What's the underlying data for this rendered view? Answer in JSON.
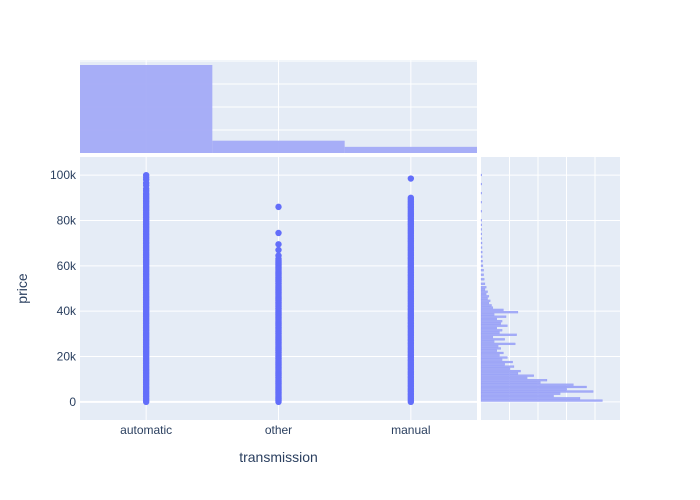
{
  "chart_data": {
    "type": "scatter",
    "subtype": "scatter with marginal histograms",
    "xlabel": "transmission",
    "ylabel": "price",
    "categories": [
      "automatic",
      "other",
      "manual"
    ],
    "y_ticks": [
      0,
      20000,
      40000,
      60000,
      80000,
      100000
    ],
    "y_tick_labels": [
      "0",
      "20k",
      "40k",
      "60k",
      "80k",
      "100k"
    ],
    "ylim": [
      -8000,
      108000
    ],
    "grid": true,
    "series": [
      {
        "name": "automatic",
        "dense_range": [
          0,
          92000
        ],
        "outliers": [
          93000,
          94000,
          95500,
          96500,
          98000,
          99000,
          100000
        ]
      },
      {
        "name": "other",
        "dense_range": [
          0,
          63000
        ],
        "outliers": [
          64500,
          67000,
          69500,
          74500,
          86000
        ]
      },
      {
        "name": "manual",
        "dense_range": [
          0,
          90000
        ],
        "outliers": [
          98500
        ]
      }
    ],
    "marginal_x_histogram": {
      "categories": [
        "automatic",
        "other",
        "manual"
      ],
      "relative_counts": [
        1.0,
        0.14,
        0.07
      ]
    },
    "marginal_y_histogram": {
      "bin_width": 1000,
      "bins": [
        {
          "y": 500,
          "rel": 0.92
        },
        {
          "y": 1500,
          "rel": 0.75
        },
        {
          "y": 2500,
          "rel": 0.55
        },
        {
          "y": 3500,
          "rel": 0.6
        },
        {
          "y": 4500,
          "rel": 0.85
        },
        {
          "y": 5500,
          "rel": 0.65
        },
        {
          "y": 6500,
          "rel": 0.8
        },
        {
          "y": 7500,
          "rel": 0.7
        },
        {
          "y": 8500,
          "rel": 0.45
        },
        {
          "y": 9500,
          "rel": 0.5
        },
        {
          "y": 10500,
          "rel": 0.35
        },
        {
          "y": 11500,
          "rel": 0.4
        },
        {
          "y": 12500,
          "rel": 0.28
        },
        {
          "y": 13500,
          "rel": 0.3
        },
        {
          "y": 14500,
          "rel": 0.22
        },
        {
          "y": 15500,
          "rel": 0.25
        },
        {
          "y": 16500,
          "rel": 0.18
        },
        {
          "y": 17500,
          "rel": 0.24
        },
        {
          "y": 18500,
          "rel": 0.16
        },
        {
          "y": 19500,
          "rel": 0.2
        },
        {
          "y": 20500,
          "rel": 0.14
        },
        {
          "y": 21500,
          "rel": 0.17
        },
        {
          "y": 22500,
          "rel": 0.12
        },
        {
          "y": 23500,
          "rel": 0.15
        },
        {
          "y": 24500,
          "rel": 0.13
        },
        {
          "y": 25500,
          "rel": 0.26
        },
        {
          "y": 26500,
          "rel": 0.1
        },
        {
          "y": 27500,
          "rel": 0.18
        },
        {
          "y": 28500,
          "rel": 0.09
        },
        {
          "y": 29500,
          "rel": 0.27
        },
        {
          "y": 30500,
          "rel": 0.14
        },
        {
          "y": 31500,
          "rel": 0.16
        },
        {
          "y": 32500,
          "rel": 0.12
        },
        {
          "y": 33500,
          "rel": 0.2
        },
        {
          "y": 34500,
          "rel": 0.15
        },
        {
          "y": 35500,
          "rel": 0.16
        },
        {
          "y": 36500,
          "rel": 0.12
        },
        {
          "y": 37500,
          "rel": 0.19
        },
        {
          "y": 38500,
          "rel": 0.1
        },
        {
          "y": 39500,
          "rel": 0.28
        },
        {
          "y": 40500,
          "rel": 0.17
        },
        {
          "y": 41500,
          "rel": 0.09
        },
        {
          "y": 42500,
          "rel": 0.08
        },
        {
          "y": 43500,
          "rel": 0.06
        },
        {
          "y": 44500,
          "rel": 0.07
        },
        {
          "y": 45500,
          "rel": 0.05
        },
        {
          "y": 46500,
          "rel": 0.06
        },
        {
          "y": 47500,
          "rel": 0.04
        },
        {
          "y": 48500,
          "rel": 0.05
        },
        {
          "y": 49500,
          "rel": 0.03
        },
        {
          "y": 50500,
          "rel": 0.04
        },
        {
          "y": 52000,
          "rel": 0.03
        },
        {
          "y": 54000,
          "rel": 0.025
        },
        {
          "y": 56000,
          "rel": 0.02
        },
        {
          "y": 58000,
          "rel": 0.02
        },
        {
          "y": 60000,
          "rel": 0.015
        },
        {
          "y": 62000,
          "rel": 0.012
        },
        {
          "y": 64000,
          "rel": 0.01
        },
        {
          "y": 66000,
          "rel": 0.01
        },
        {
          "y": 68000,
          "rel": 0.008
        },
        {
          "y": 70000,
          "rel": 0.008
        },
        {
          "y": 72000,
          "rel": 0.006
        },
        {
          "y": 74000,
          "rel": 0.006
        },
        {
          "y": 76000,
          "rel": 0.005
        },
        {
          "y": 78000,
          "rel": 0.005
        },
        {
          "y": 80000,
          "rel": 0.004
        },
        {
          "y": 84000,
          "rel": 0.004
        },
        {
          "y": 88000,
          "rel": 0.003
        },
        {
          "y": 92000,
          "rel": 0.003
        },
        {
          "y": 96000,
          "rel": 0.002
        },
        {
          "y": 100000,
          "rel": 0.002
        }
      ]
    },
    "colors": {
      "marker": "#636efa",
      "histogram": "#a3abf7",
      "plot_bg": "#e5ecf6",
      "grid": "#ffffff",
      "text": "#2a3f5f"
    }
  }
}
